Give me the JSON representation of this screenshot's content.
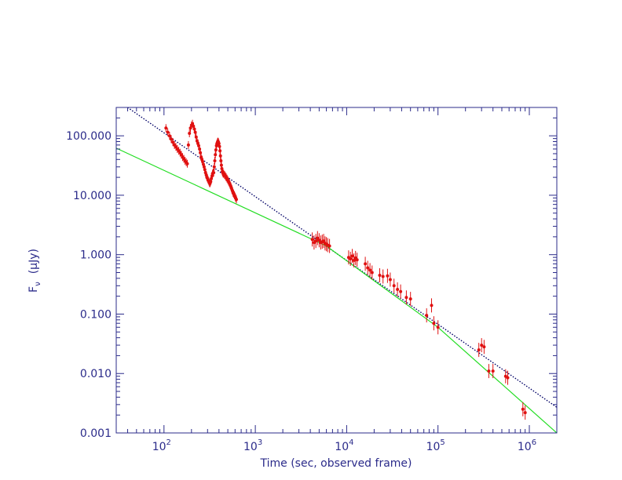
{
  "chart_data": {
    "type": "scatter",
    "xscale": "log",
    "yscale": "log",
    "xlim": [
      30,
      2000000
    ],
    "ylim": [
      0.001,
      300
    ],
    "xlabel": "Time  (sec, observed frame)",
    "ylabel_main": "F",
    "ylabel_sub": "ν",
    "ylabel_unit": "(μJy)",
    "x_ticks": [
      {
        "value": 100,
        "base": "10",
        "exp": "2"
      },
      {
        "value": 1000,
        "base": "10",
        "exp": "3"
      },
      {
        "value": 10000,
        "base": "10",
        "exp": "4"
      },
      {
        "value": 100000,
        "base": "10",
        "exp": "5"
      },
      {
        "value": 1000000,
        "base": "10",
        "exp": "6"
      }
    ],
    "y_ticks": [
      {
        "value": 0.001,
        "label": "0.001"
      },
      {
        "value": 0.01,
        "label": "0.010"
      },
      {
        "value": 0.1,
        "label": "0.100"
      },
      {
        "value": 1,
        "label": "1.000"
      },
      {
        "value": 10,
        "label": "10.000"
      },
      {
        "value": 100,
        "label": "100.000"
      }
    ],
    "grid": false,
    "colors": {
      "axes": "#2b2b8a",
      "points": "#e01010",
      "fit_powerlaw": "#000066",
      "fit_broken": "#22dd22"
    },
    "series": [
      {
        "kind": "points",
        "points": [
          [
            105,
            135
          ],
          [
            110,
            115
          ],
          [
            115,
            100
          ],
          [
            120,
            88
          ],
          [
            125,
            78
          ],
          [
            130,
            70
          ],
          [
            135,
            65
          ],
          [
            140,
            60
          ],
          [
            145,
            56
          ],
          [
            150,
            52
          ],
          [
            155,
            48
          ],
          [
            160,
            44
          ],
          [
            165,
            41
          ],
          [
            170,
            38
          ],
          [
            175,
            36
          ],
          [
            180,
            34
          ],
          [
            185,
            70
          ],
          [
            190,
            110
          ],
          [
            195,
            135
          ],
          [
            200,
            150
          ],
          [
            205,
            160
          ],
          [
            210,
            145
          ],
          [
            215,
            130
          ],
          [
            220,
            115
          ],
          [
            225,
            95
          ],
          [
            230,
            82
          ],
          [
            235,
            75
          ],
          [
            240,
            68
          ],
          [
            245,
            60
          ],
          [
            250,
            52
          ],
          [
            255,
            44
          ],
          [
            260,
            40
          ],
          [
            265,
            37
          ],
          [
            270,
            33
          ],
          [
            275,
            30
          ],
          [
            280,
            27
          ],
          [
            285,
            24
          ],
          [
            290,
            22
          ],
          [
            295,
            20
          ],
          [
            300,
            19
          ],
          [
            305,
            18
          ],
          [
            310,
            17
          ],
          [
            315,
            16
          ],
          [
            320,
            16
          ],
          [
            325,
            17
          ],
          [
            330,
            19
          ],
          [
            335,
            21
          ],
          [
            340,
            23
          ],
          [
            345,
            24
          ],
          [
            350,
            24
          ],
          [
            355,
            30
          ],
          [
            360,
            38
          ],
          [
            365,
            48
          ],
          [
            370,
            58
          ],
          [
            375,
            68
          ],
          [
            380,
            74
          ],
          [
            385,
            78
          ],
          [
            390,
            80
          ],
          [
            395,
            78
          ],
          [
            400,
            74
          ],
          [
            405,
            66
          ],
          [
            410,
            56
          ],
          [
            415,
            46
          ],
          [
            420,
            38
          ],
          [
            425,
            32
          ],
          [
            430,
            28
          ],
          [
            435,
            25
          ],
          [
            440,
            24
          ],
          [
            445,
            23
          ],
          [
            450,
            23
          ],
          [
            460,
            22
          ],
          [
            470,
            21
          ],
          [
            480,
            20
          ],
          [
            490,
            19
          ],
          [
            500,
            18
          ],
          [
            510,
            17
          ],
          [
            520,
            16
          ],
          [
            530,
            15
          ],
          [
            540,
            14
          ],
          [
            550,
            13
          ],
          [
            560,
            12
          ],
          [
            570,
            11
          ],
          [
            580,
            10.5
          ],
          [
            590,
            10
          ],
          [
            600,
            9.5
          ],
          [
            610,
            9
          ],
          [
            620,
            8.5
          ],
          [
            4200,
            1.8
          ],
          [
            4400,
            1.6
          ],
          [
            4600,
            1.7
          ],
          [
            4800,
            1.9
          ],
          [
            5000,
            1.75
          ],
          [
            5200,
            1.6
          ],
          [
            5400,
            1.65
          ],
          [
            5600,
            1.7
          ],
          [
            5800,
            1.55
          ],
          [
            6000,
            1.5
          ],
          [
            6200,
            1.45
          ],
          [
            6500,
            1.4
          ],
          [
            10500,
            0.9
          ],
          [
            11000,
            0.85
          ],
          [
            11500,
            0.95
          ],
          [
            12000,
            0.8
          ],
          [
            12500,
            0.88
          ],
          [
            13000,
            0.82
          ],
          [
            16000,
            0.7
          ],
          [
            17000,
            0.6
          ],
          [
            18000,
            0.55
          ],
          [
            19000,
            0.5
          ],
          [
            23000,
            0.45
          ],
          [
            25000,
            0.43
          ],
          [
            28000,
            0.44
          ],
          [
            30000,
            0.38
          ],
          [
            33000,
            0.3
          ],
          [
            36000,
            0.26
          ],
          [
            39000,
            0.24
          ],
          [
            45000,
            0.19
          ],
          [
            50000,
            0.18
          ],
          [
            75000,
            0.095
          ],
          [
            85000,
            0.14
          ],
          [
            90000,
            0.07
          ],
          [
            100000,
            0.06
          ],
          [
            280000,
            0.025
          ],
          [
            300000,
            0.03
          ],
          [
            320000,
            0.028
          ],
          [
            360000,
            0.011
          ],
          [
            400000,
            0.011
          ],
          [
            550000,
            0.009
          ],
          [
            580000,
            0.0085
          ],
          [
            850000,
            0.0025
          ],
          [
            900000,
            0.0022
          ]
        ]
      },
      {
        "kind": "line",
        "style": "dotted",
        "points": [
          [
            40,
            300
          ],
          [
            2000000,
            0.0027
          ]
        ]
      },
      {
        "kind": "line",
        "style": "solid",
        "points": [
          [
            30,
            62
          ],
          [
            6000,
            1.4
          ],
          [
            100000,
            0.06
          ],
          [
            2000000,
            0.001
          ]
        ]
      }
    ]
  }
}
